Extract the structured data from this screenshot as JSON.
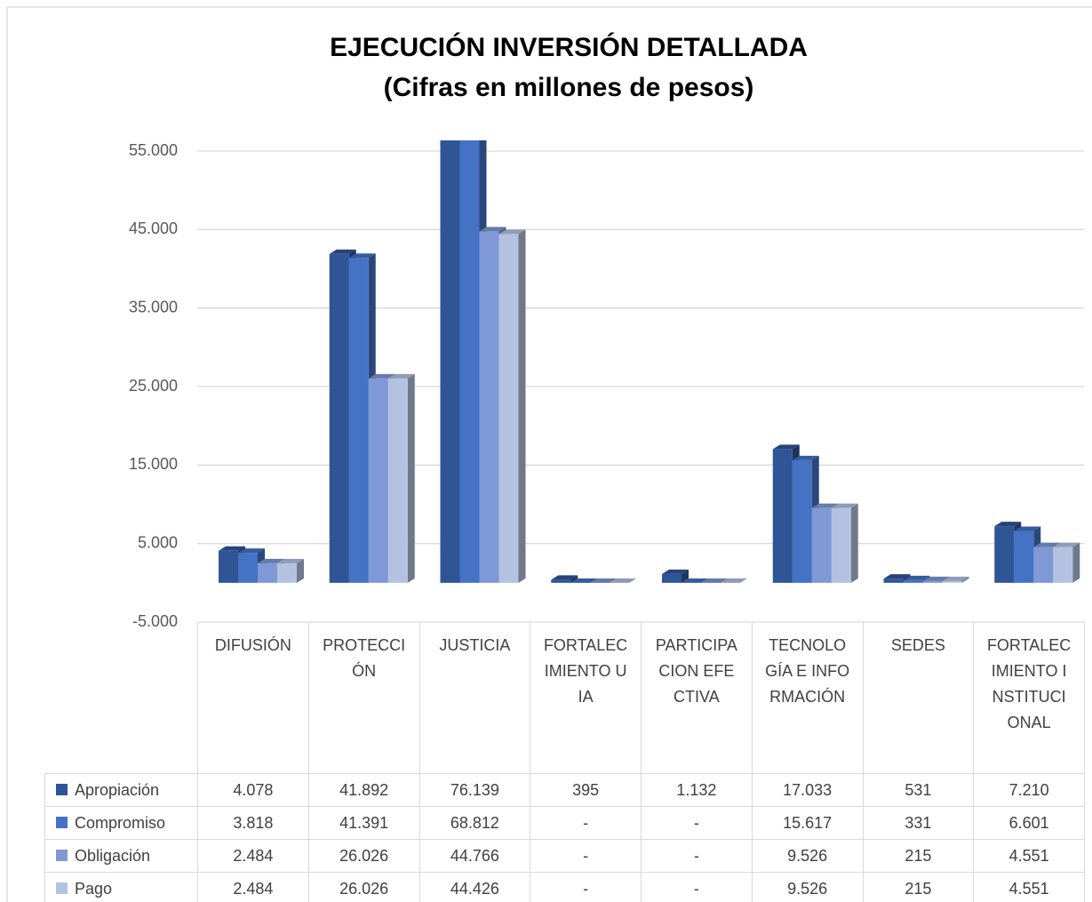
{
  "chart_data": {
    "type": "bar3d",
    "title": "EJECUCIÓN INVERSIÓN DETALLADA",
    "subtitle": "(Cifras en millones de pesos)",
    "categories": [
      "DIFUSIÓN",
      "PROTECCIÓN",
      "JUSTICIA",
      "FORTALECIMIENTO UIA",
      "PARTICIPACION EFECTIVA",
      "TECNOLOGÍA E INFORMACIÓN",
      "SEDES",
      "FORTALECIMIENTO INSTITUCIONAL"
    ],
    "series": [
      {
        "name": "Apropiación",
        "color": "#2f5597",
        "values": [
          4078,
          41892,
          76139,
          395,
          1132,
          17033,
          531,
          7210
        ],
        "value_labels": [
          "4.078",
          "41.892",
          "76.139",
          "395",
          "1.132",
          "17.033",
          "531",
          "7.210"
        ]
      },
      {
        "name": "Compromiso",
        "color": "#4472c4",
        "values": [
          3818,
          41391,
          68812,
          0,
          0,
          15617,
          331,
          6601
        ],
        "value_labels": [
          "3.818",
          "41.391",
          "68.812",
          "-",
          "-",
          "15.617",
          "331",
          "6.601"
        ]
      },
      {
        "name": "Obligación",
        "color": "#7f98d6",
        "values": [
          2484,
          26026,
          44766,
          0,
          0,
          9526,
          215,
          4551
        ],
        "value_labels": [
          "2.484",
          "26.026",
          "44.766",
          "-",
          "-",
          "9.526",
          "215",
          "4.551"
        ]
      },
      {
        "name": "Pago",
        "color": "#b4c2e2",
        "values": [
          2484,
          26026,
          44426,
          0,
          0,
          9526,
          215,
          4551
        ],
        "value_labels": [
          "2.484",
          "26.026",
          "44.426",
          "-",
          "-",
          "9.526",
          "215",
          "4.551"
        ]
      }
    ],
    "ylim": [
      -5000,
      55000
    ],
    "yticks": [
      {
        "value": -5000,
        "label": "-5.000"
      },
      {
        "value": 5000,
        "label": "5.000"
      },
      {
        "value": 15000,
        "label": "15.000"
      },
      {
        "value": 25000,
        "label": "25.000"
      },
      {
        "value": 35000,
        "label": "35.000"
      },
      {
        "value": 45000,
        "label": "45.000"
      },
      {
        "value": 55000,
        "label": "55.000"
      }
    ],
    "grid": true
  }
}
